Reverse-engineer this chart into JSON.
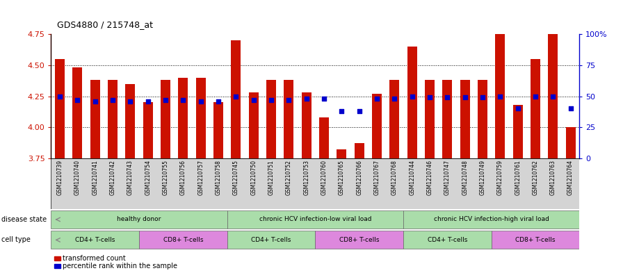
{
  "title": "GDS4880 / 215748_at",
  "samples": [
    "GSM1210739",
    "GSM1210740",
    "GSM1210741",
    "GSM1210742",
    "GSM1210743",
    "GSM1210754",
    "GSM1210755",
    "GSM1210756",
    "GSM1210757",
    "GSM1210758",
    "GSM1210745",
    "GSM1210750",
    "GSM1210751",
    "GSM1210752",
    "GSM1210753",
    "GSM1210760",
    "GSM1210765",
    "GSM1210766",
    "GSM1210767",
    "GSM1210768",
    "GSM1210744",
    "GSM1210746",
    "GSM1210747",
    "GSM1210748",
    "GSM1210749",
    "GSM1210759",
    "GSM1210761",
    "GSM1210762",
    "GSM1210763",
    "GSM1210764"
  ],
  "bar_values": [
    4.55,
    4.48,
    4.38,
    4.38,
    4.35,
    4.2,
    4.38,
    4.4,
    4.4,
    4.2,
    4.7,
    4.28,
    4.38,
    4.38,
    4.28,
    4.08,
    3.82,
    3.87,
    4.27,
    4.38,
    4.65,
    4.38,
    4.38,
    4.38,
    4.38,
    4.85,
    4.18,
    4.55,
    4.85,
    4.0
  ],
  "percentile_values": [
    50,
    47,
    46,
    47,
    46,
    46,
    47,
    47,
    46,
    46,
    50,
    47,
    47,
    47,
    48,
    48,
    38,
    38,
    48,
    48,
    50,
    49,
    49,
    49,
    49,
    50,
    40,
    50,
    50,
    40
  ],
  "ymin": 3.75,
  "ymax": 4.75,
  "yticks_left": [
    3.75,
    4.0,
    4.25,
    4.5,
    4.75
  ],
  "yticks_right": [
    0,
    25,
    50,
    75,
    100
  ],
  "grid_lines": [
    4.0,
    4.25,
    4.5
  ],
  "bar_color": "#cc1100",
  "dot_color": "#0000cc",
  "bar_width": 0.55,
  "tick_bg_color": "#d4d4d4",
  "ds_color": "#aaddaa",
  "cd4_color": "#aaddaa",
  "cd8_color": "#dd88dd",
  "ds_groups": [
    {
      "label": "healthy donor",
      "start": 0,
      "end": 9
    },
    {
      "label": "chronic HCV infection-low viral load",
      "start": 10,
      "end": 19
    },
    {
      "label": "chronic HCV infection-high viral load",
      "start": 20,
      "end": 29
    }
  ],
  "ct_groups": [
    {
      "label": "CD4+ T-cells",
      "start": 0,
      "end": 4,
      "cd4": true
    },
    {
      "label": "CD8+ T-cells",
      "start": 5,
      "end": 9,
      "cd4": false
    },
    {
      "label": "CD4+ T-cells",
      "start": 10,
      "end": 14,
      "cd4": true
    },
    {
      "label": "CD8+ T-cells",
      "start": 15,
      "end": 19,
      "cd4": false
    },
    {
      "label": "CD4+ T-cells",
      "start": 20,
      "end": 24,
      "cd4": true
    },
    {
      "label": "CD8+ T-cells",
      "start": 25,
      "end": 29,
      "cd4": false
    }
  ],
  "legend": [
    {
      "label": "transformed count",
      "color": "#cc1100"
    },
    {
      "label": "percentile rank within the sample",
      "color": "#0000cc"
    }
  ]
}
